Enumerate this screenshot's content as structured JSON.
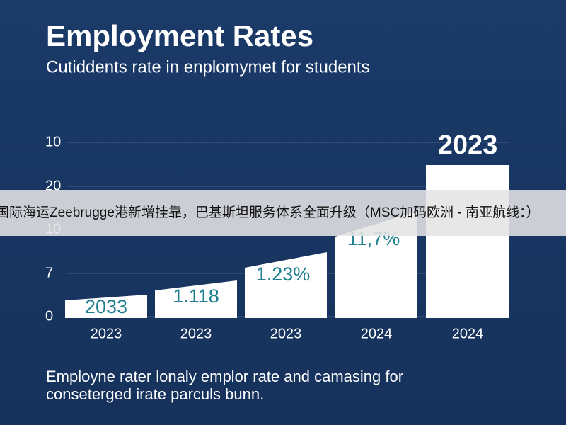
{
  "header": {
    "title": "Employment Rates",
    "subtitle": "Cutiddents rate in enplomymet for students"
  },
  "axis": {
    "tick_labels": [
      "10",
      "20",
      "10",
      "7",
      "0"
    ]
  },
  "bars": [
    {
      "label": "2033",
      "category": "2023"
    },
    {
      "label": "1.118",
      "category": "2023"
    },
    {
      "label": "1.23%",
      "category": "2023"
    },
    {
      "label": "11,7%",
      "category": "2024"
    },
    {
      "label": "2023",
      "category": "2024"
    }
  ],
  "caption": [
    "Employne rater lonaly emplor rate and camasing for",
    "conseterged irate parculs bunn."
  ],
  "banner": "国际海运Zeebrugge港新增挂靠，巴基斯坦服务体系全面升级（MSC加码欧洲 - 南亚航线：）"
}
